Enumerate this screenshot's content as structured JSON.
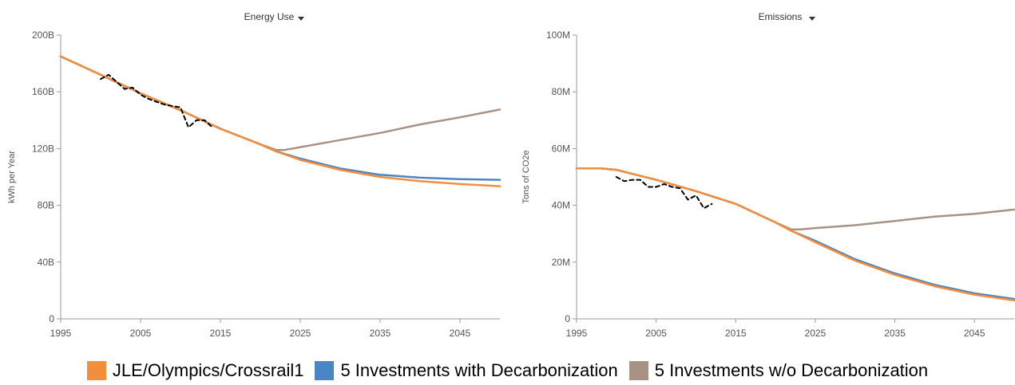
{
  "legend": {
    "items": [
      {
        "label": "JLE/Olympics/Crossrail1",
        "color": "#f28e3c"
      },
      {
        "label": "5 Investments with Decarbonization",
        "color": "#4a86c5"
      },
      {
        "label": "5 Investments w/o Decarbonization",
        "color": "#a89283"
      }
    ]
  },
  "chart_data": [
    {
      "type": "line",
      "title": "Energy Use",
      "title_dropdown_icon": "caret-down-icon",
      "ylabel": "kWh per Year",
      "xlabel": "",
      "xlim": [
        1995,
        2050
      ],
      "ylim": [
        0,
        200
      ],
      "x_ticks": [
        "1995",
        "2005",
        "2015",
        "2025",
        "2035",
        "2045"
      ],
      "x_tick_values": [
        1995,
        2005,
        2015,
        2025,
        2035,
        2045
      ],
      "y_ticks": [
        "0",
        "40B",
        "80B",
        "120B",
        "160B",
        "200B"
      ],
      "y_tick_values": [
        0,
        40,
        80,
        120,
        160,
        200
      ],
      "series": [
        {
          "legend_index": 0,
          "color": "#f28e3c",
          "x": [
            1995,
            2000,
            2005,
            2010,
            2015,
            2020,
            2022,
            2025,
            2030,
            2035,
            2040,
            2045,
            2050
          ],
          "y": [
            185,
            172,
            159,
            147,
            134,
            123,
            118,
            112,
            105,
            100,
            97,
            95,
            93.5
          ]
        },
        {
          "legend_index": 1,
          "color": "#4a86c5",
          "x": [
            1995,
            2000,
            2005,
            2010,
            2015,
            2020,
            2022,
            2025,
            2030,
            2035,
            2040,
            2045,
            2050
          ],
          "y": [
            185,
            172,
            159,
            147,
            134,
            123,
            118,
            113,
            106,
            101.5,
            99.5,
            98.5,
            98
          ]
        },
        {
          "legend_index": 2,
          "color": "#a89283",
          "x": [
            1995,
            2000,
            2005,
            2010,
            2015,
            2020,
            2022,
            2023,
            2025,
            2030,
            2035,
            2040,
            2045,
            2050
          ],
          "y": [
            185,
            172,
            159,
            147,
            134,
            123,
            119,
            119,
            121,
            126,
            131,
            137,
            142,
            147.5
          ]
        },
        {
          "dashed": true,
          "color": "#000000",
          "x": [
            2000,
            2001,
            2002,
            2003,
            2004,
            2005,
            2006,
            2007,
            2008,
            2009,
            2010,
            2011,
            2012,
            2013,
            2014
          ],
          "y": [
            169,
            172,
            167,
            162,
            163,
            158,
            155,
            153,
            151,
            150,
            149,
            135,
            140,
            140,
            135
          ]
        }
      ]
    },
    {
      "type": "line",
      "title": "Emissions",
      "title_dropdown_icon": "caret-down-icon",
      "ylabel": "Tons of CO2e",
      "xlabel": "",
      "xlim": [
        1995,
        2050
      ],
      "ylim": [
        0,
        100
      ],
      "x_ticks": [
        "1995",
        "2005",
        "2015",
        "2025",
        "2035",
        "2045"
      ],
      "x_tick_values": [
        1995,
        2005,
        2015,
        2025,
        2035,
        2045
      ],
      "y_ticks": [
        "0",
        "20M",
        "40M",
        "60M",
        "80M",
        "100M"
      ],
      "y_tick_values": [
        0,
        20,
        40,
        60,
        80,
        100
      ],
      "series": [
        {
          "legend_index": 0,
          "color": "#f28e3c",
          "x": [
            1995,
            1998,
            2000,
            2005,
            2010,
            2015,
            2020,
            2022,
            2025,
            2030,
            2035,
            2040,
            2045,
            2050
          ],
          "y": [
            53,
            53,
            52.5,
            49,
            45,
            40.5,
            34,
            31,
            27,
            20.5,
            15.5,
            11.5,
            8.5,
            6.5
          ]
        },
        {
          "legend_index": 1,
          "color": "#4a86c5",
          "x": [
            1995,
            1998,
            2000,
            2005,
            2010,
            2015,
            2020,
            2022,
            2025,
            2030,
            2035,
            2040,
            2045,
            2050
          ],
          "y": [
            53,
            53,
            52.5,
            49,
            45,
            40.5,
            34,
            31,
            27.5,
            21,
            16,
            12,
            9,
            7
          ]
        },
        {
          "legend_index": 2,
          "color": "#a89283",
          "x": [
            1995,
            1998,
            2000,
            2005,
            2010,
            2015,
            2020,
            2022,
            2023,
            2025,
            2030,
            2035,
            2040,
            2045,
            2050
          ],
          "y": [
            53,
            53,
            52.5,
            49,
            45,
            40.5,
            34,
            31.5,
            31.5,
            32,
            33,
            34.5,
            36,
            37,
            38.5
          ]
        },
        {
          "dashed": true,
          "color": "#000000",
          "x": [
            2000,
            2001,
            2002,
            2003,
            2004,
            2005,
            2006,
            2007,
            2008,
            2009,
            2010,
            2011,
            2012
          ],
          "y": [
            50,
            48.5,
            49,
            49,
            46.5,
            46.5,
            47.5,
            46.5,
            46,
            42,
            43.5,
            39,
            40.5
          ]
        }
      ]
    }
  ]
}
